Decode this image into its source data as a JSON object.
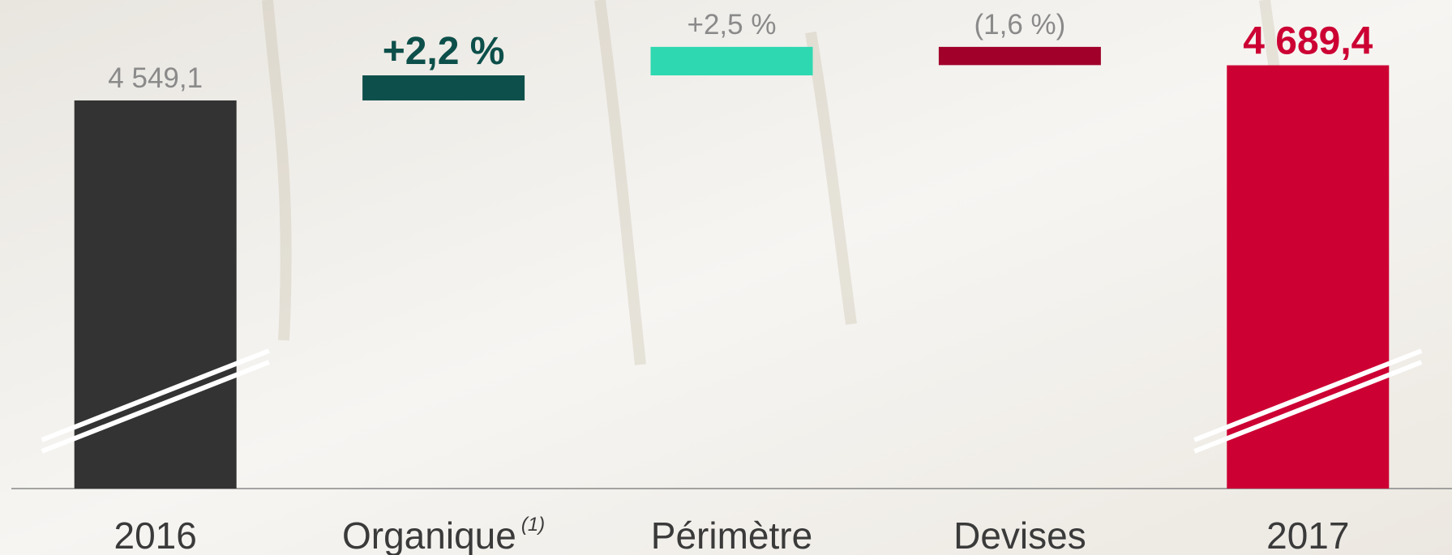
{
  "chart_data": {
    "type": "waterfall",
    "categories": [
      "2016",
      "Organique",
      "Périmètre",
      "Devises",
      "2017"
    ],
    "category_notes": [
      null,
      "(1)",
      null,
      null,
      null
    ],
    "values": [
      4549.1,
      2.2,
      2.5,
      -1.6,
      4689.4
    ],
    "value_labels": [
      "4 549,1",
      "+2,2 %",
      "+2,5 %",
      "(1,6 %)",
      "4 689,4"
    ],
    "colors": [
      "#333333",
      "#0d4f4a",
      "#2ed8b0",
      "#a0002a",
      "#cc0033"
    ],
    "emphasized": [
      false,
      true,
      false,
      false,
      true
    ],
    "ylim": [
      3000,
      4950
    ],
    "axis_break": true
  }
}
